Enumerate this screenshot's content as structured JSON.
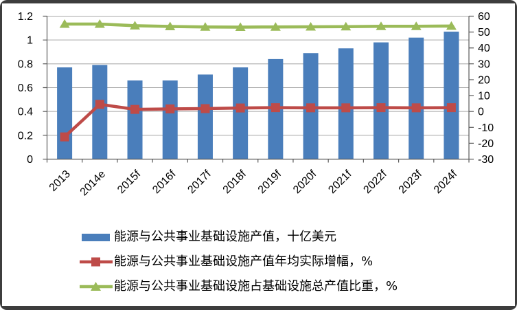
{
  "frame": {
    "border_color": "#3d3d3d",
    "background": "#ffffff"
  },
  "chart_data": {
    "type": "bar",
    "subtype": "combo-bar-line-dual-axis",
    "categories": [
      "2013",
      "2014e",
      "2015f",
      "2016f",
      "2017f",
      "2018f",
      "2019f",
      "2020f",
      "2021f",
      "2022f",
      "2023f",
      "2024f"
    ],
    "series": [
      {
        "name": "能源与公共事业基础设施产值，十亿美元",
        "type": "bar",
        "axis": "left",
        "marker": "rect",
        "color": "#4a7ebb",
        "values": [
          0.77,
          0.79,
          0.66,
          0.66,
          0.71,
          0.77,
          0.84,
          0.89,
          0.93,
          0.98,
          1.02,
          1.07
        ]
      },
      {
        "name": "能源与公共事业基础设施产值年均实际增幅，%",
        "type": "line",
        "axis": "right",
        "marker": "square",
        "color": "#be4b48",
        "values": [
          -16,
          4.5,
          1.3,
          1.6,
          1.8,
          2.2,
          2.4,
          2.3,
          2.3,
          2.4,
          2.3,
          2.4
        ]
      },
      {
        "name": "能源与公共事业基础设施占基础设施总产值比重，%",
        "type": "line",
        "axis": "right",
        "marker": "triangle",
        "color": "#9bbb59",
        "values": [
          55,
          55,
          54,
          53.5,
          53.2,
          53.1,
          53.2,
          53.3,
          53.4,
          53.6,
          53.6,
          53.8
        ]
      }
    ],
    "left_axis": {
      "min": 0,
      "max": 1.2,
      "ticks": [
        "1.2",
        "1",
        "0.8",
        "0.6",
        "0.4",
        "0.2",
        "0"
      ]
    },
    "right_axis": {
      "min": -30,
      "max": 60,
      "ticks": [
        "60",
        "50",
        "40",
        "30",
        "20",
        "10",
        "0",
        "-10",
        "-20",
        "-30"
      ]
    },
    "grid": "horizontal-on",
    "legend_position": "bottom-left",
    "x_label_rotation": -45,
    "colors": {
      "grid": "#a6a6a6",
      "axis": "#595959",
      "text": "#000000"
    }
  }
}
